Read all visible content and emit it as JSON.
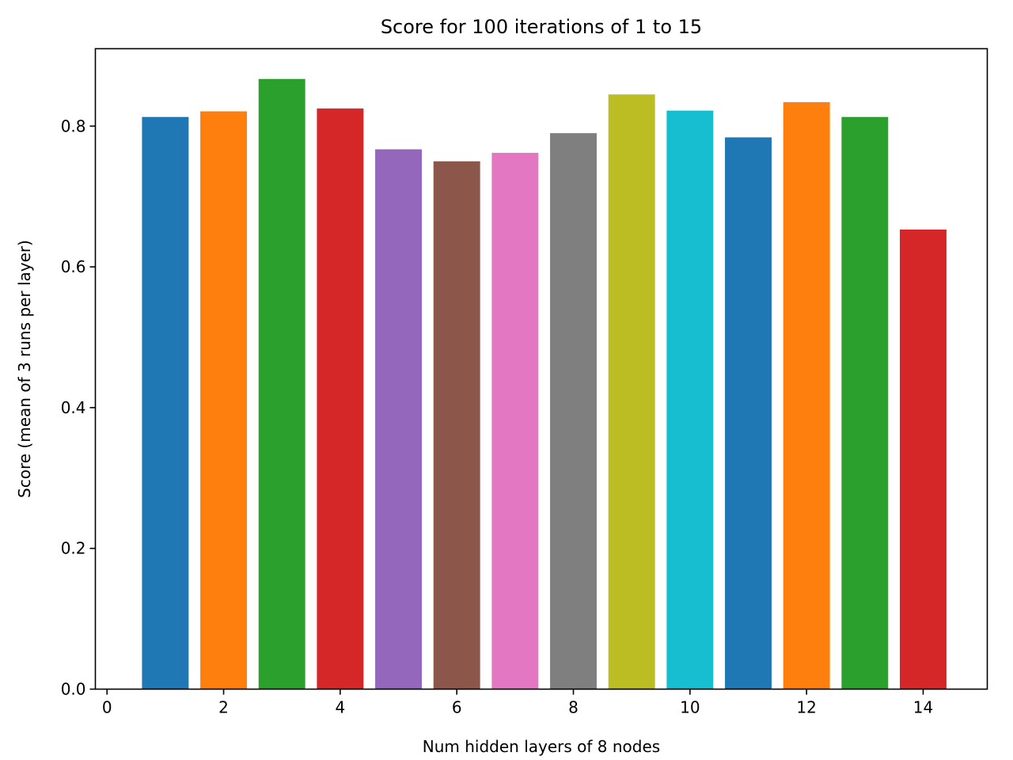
{
  "chart_data": {
    "type": "bar",
    "title": "Score for 100 iterations of 1 to 15",
    "xlabel": "Num hidden layers of 8 nodes",
    "ylabel": "Score (mean of 3 runs per layer)",
    "x": [
      1,
      2,
      3,
      4,
      5,
      6,
      7,
      8,
      9,
      10,
      11,
      12,
      13,
      14
    ],
    "values": [
      0.813,
      0.821,
      0.867,
      0.825,
      0.767,
      0.75,
      0.762,
      0.79,
      0.845,
      0.822,
      0.784,
      0.834,
      0.813,
      0.653
    ],
    "colors": [
      "#1f77b4",
      "#ff7f0e",
      "#2ca02c",
      "#d62728",
      "#9467bd",
      "#8c564b",
      "#e377c2",
      "#7f7f7f",
      "#bcbd22",
      "#17becf",
      "#1f77b4",
      "#ff7f0e",
      "#2ca02c",
      "#d62728"
    ],
    "xlim": [
      -0.2,
      15.1
    ],
    "ylim": [
      0,
      0.91
    ],
    "xticks": [
      0,
      2,
      4,
      6,
      8,
      10,
      12,
      14
    ],
    "xtick_labels": [
      "0",
      "2",
      "4",
      "6",
      "8",
      "10",
      "12",
      "14"
    ],
    "yticks": [
      0.0,
      0.2,
      0.4,
      0.6,
      0.8
    ],
    "ytick_labels": [
      "0.0",
      "0.2",
      "0.4",
      "0.6",
      "0.8"
    ],
    "grid": false,
    "legend": "none"
  }
}
